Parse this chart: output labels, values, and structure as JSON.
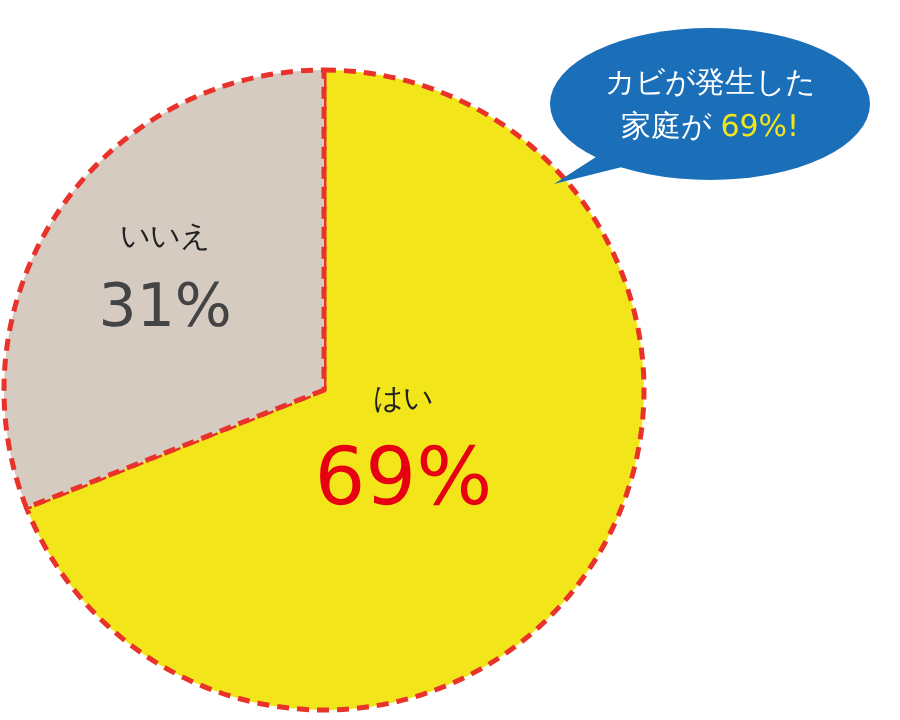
{
  "chart_data": {
    "type": "pie",
    "categories": [
      "はい",
      "いいえ"
    ],
    "values": [
      69,
      31
    ],
    "colors": [
      "#f2e61a",
      "#d6cbc1"
    ],
    "value_labels": [
      "69%",
      "31%"
    ],
    "annotations": [
      "カビが発生した家庭が 69%!"
    ]
  }
}
